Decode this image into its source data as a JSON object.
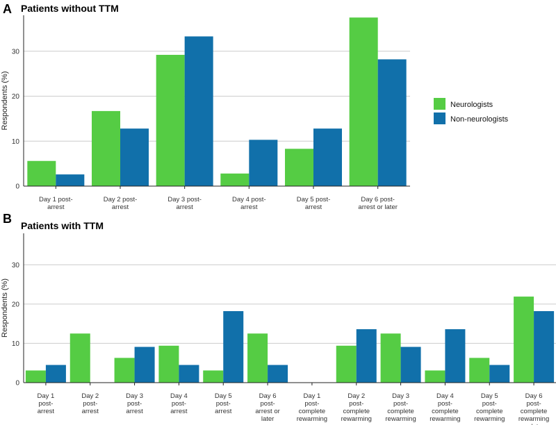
{
  "colors": {
    "neurologists": "#55cc44",
    "non_neurologists": "#1170aa"
  },
  "legend": {
    "items": [
      {
        "label": "Neurologists",
        "color": "#55cc44"
      },
      {
        "label": "Non-neurologists",
        "color": "#1170aa"
      }
    ]
  },
  "chart_data": [
    {
      "type": "bar",
      "panel": "A",
      "title": "Patients without TTM",
      "ylabel": "Respondents (%)",
      "ylim": [
        0,
        38
      ],
      "yticks": [
        0,
        10,
        20,
        30
      ],
      "grid": true,
      "legend_position": "right",
      "categories": [
        [
          "Day 1 post-",
          "arrest"
        ],
        [
          "Day 2 post-",
          "arrest"
        ],
        [
          "Day 3 post-",
          "arrest"
        ],
        [
          "Day 4 post-",
          "arrest"
        ],
        [
          "Day 5 post-",
          "arrest"
        ],
        [
          "Day 6 post-",
          "arrest or later"
        ]
      ],
      "series": [
        {
          "name": "Neurologists",
          "values": [
            5.6,
            16.7,
            29.2,
            2.8,
            8.3,
            37.5
          ]
        },
        {
          "name": "Non-neurologists",
          "values": [
            2.6,
            12.8,
            33.3,
            10.3,
            12.8,
            28.2
          ]
        }
      ]
    },
    {
      "type": "bar",
      "panel": "B",
      "title": "Patients with TTM",
      "ylabel": "Respondents (%)",
      "ylim": [
        0,
        38
      ],
      "yticks": [
        0,
        10,
        20,
        30
      ],
      "grid": true,
      "categories": [
        [
          "Day 1",
          "post-",
          "arrest"
        ],
        [
          "Day 2",
          "post-",
          "arrest"
        ],
        [
          "Day 3",
          "post-",
          "arrest"
        ],
        [
          "Day 4",
          "post-",
          "arrest"
        ],
        [
          "Day 5",
          "post-",
          "arrest"
        ],
        [
          "Day 6",
          "post-",
          "arrest or",
          "later"
        ],
        [
          "Day 1",
          "post-",
          "complete",
          "rewarming"
        ],
        [
          "Day 2",
          "post-",
          "complete",
          "rewarming"
        ],
        [
          "Day 3",
          "post-",
          "complete",
          "rewarming"
        ],
        [
          "Day 4",
          "post-",
          "complete",
          "rewarming"
        ],
        [
          "Day 5",
          "post-",
          "complete",
          "rewarming"
        ],
        [
          "Day 6",
          "post-",
          "complete",
          "rewarming",
          "or later"
        ]
      ],
      "series": [
        {
          "name": "Neurologists",
          "values": [
            3.1,
            12.5,
            6.3,
            9.4,
            3.1,
            12.5,
            0,
            9.4,
            12.5,
            3.1,
            6.3,
            21.9
          ]
        },
        {
          "name": "Non-neurologists",
          "values": [
            4.5,
            0,
            9.1,
            4.5,
            18.2,
            4.5,
            0,
            13.6,
            9.1,
            13.6,
            4.5,
            18.2
          ]
        }
      ]
    }
  ]
}
